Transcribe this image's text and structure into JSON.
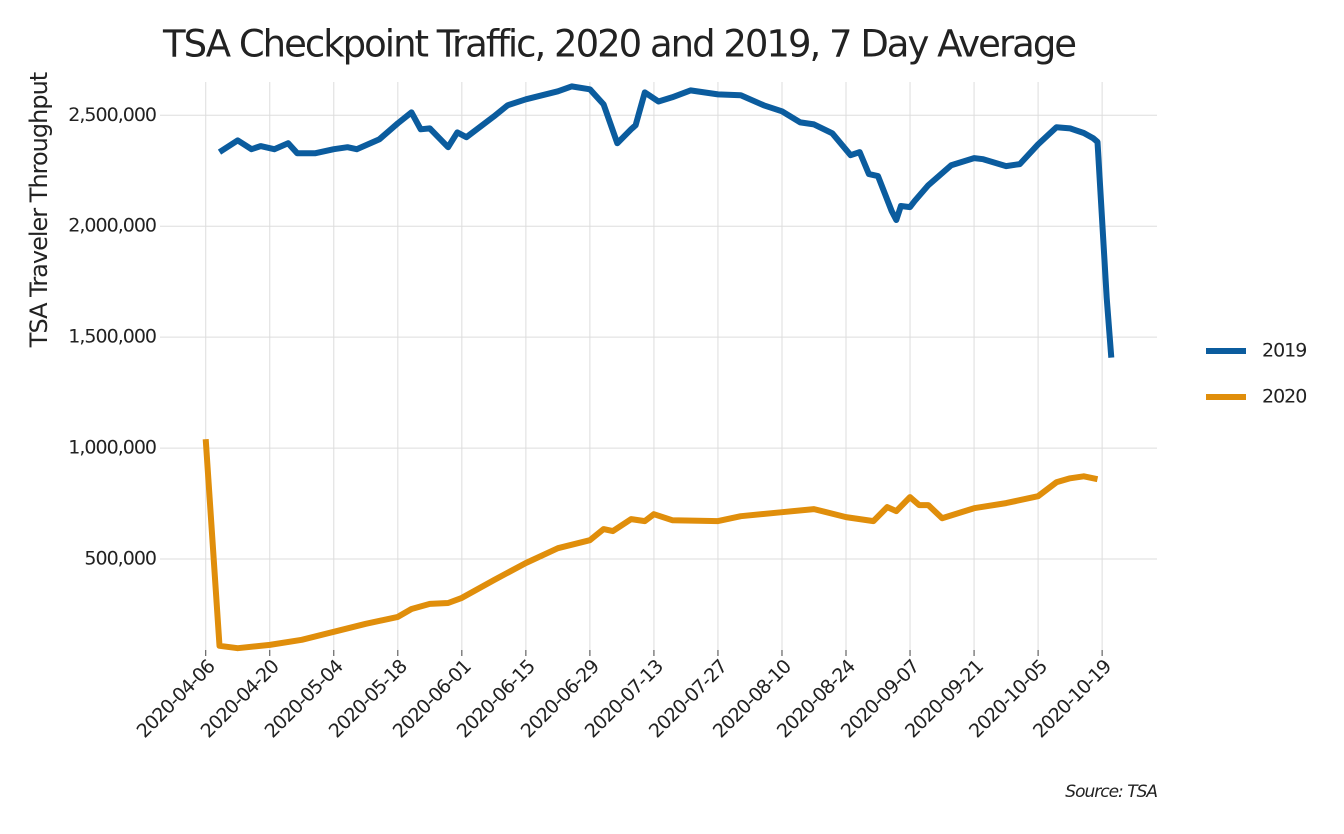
{
  "chart_data": {
    "type": "line",
    "title": "TSA Checkpoint Traffic, 2020 and 2019, 7 Day Average",
    "y_label": "TSA Traveler Throughput",
    "source": "Source: TSA",
    "xlim": [
      "2020-03-27",
      "2020-10-31"
    ],
    "ylim": [
      90000,
      2650000
    ],
    "xticks": [
      "2020-04-06",
      "2020-04-20",
      "2020-05-04",
      "2020-05-18",
      "2020-06-01",
      "2020-06-15",
      "2020-06-29",
      "2020-07-13",
      "2020-07-27",
      "2020-08-10",
      "2020-08-24",
      "2020-09-07",
      "2020-09-21",
      "2020-10-05",
      "2020-10-19"
    ],
    "yticks": [
      {
        "value": 500000,
        "label": "500,000"
      },
      {
        "value": 1000000,
        "label": "1,000,000"
      },
      {
        "value": 1500000,
        "label": "1,500,000"
      },
      {
        "value": 2000000,
        "label": "2,000,000"
      },
      {
        "value": 2500000,
        "label": "2,500,000"
      }
    ],
    "grid": true,
    "legend": "right",
    "series": [
      {
        "name": "2019",
        "color": "#0b5c9e",
        "x": [
          "2020-04-09",
          "2020-04-13",
          "2020-04-16",
          "2020-04-18",
          "2020-04-21",
          "2020-04-24",
          "2020-04-26",
          "2020-04-30",
          "2020-05-04",
          "2020-05-07",
          "2020-05-09",
          "2020-05-14",
          "2020-05-18",
          "2020-05-21",
          "2020-05-23",
          "2020-05-25",
          "2020-05-29",
          "2020-05-31",
          "2020-06-02",
          "2020-06-08",
          "2020-06-11",
          "2020-06-15",
          "2020-06-22",
          "2020-06-25",
          "2020-06-29",
          "2020-07-02",
          "2020-07-05",
          "2020-07-08",
          "2020-07-09",
          "2020-07-11",
          "2020-07-14",
          "2020-07-17",
          "2020-07-21",
          "2020-07-27",
          "2020-08-01",
          "2020-08-06",
          "2020-08-10",
          "2020-08-14",
          "2020-08-17",
          "2020-08-21",
          "2020-08-25",
          "2020-08-27",
          "2020-08-29",
          "2020-08-31",
          "2020-09-03",
          "2020-09-04",
          "2020-09-05",
          "2020-09-07",
          "2020-09-08",
          "2020-09-11",
          "2020-09-16",
          "2020-09-21",
          "2020-09-23",
          "2020-09-28",
          "2020-10-01",
          "2020-10-05",
          "2020-10-09",
          "2020-10-12",
          "2020-10-15",
          "2020-10-17",
          "2020-10-18",
          "2020-10-20",
          "2020-10-21"
        ],
        "values": [
          2334000,
          2387000,
          2347000,
          2361000,
          2347000,
          2374000,
          2329000,
          2329000,
          2347000,
          2356000,
          2347000,
          2392000,
          2464000,
          2513000,
          2437000,
          2441000,
          2356000,
          2423000,
          2401000,
          2495000,
          2545000,
          2572000,
          2608000,
          2630000,
          2617000,
          2549000,
          2374000,
          2437000,
          2455000,
          2603000,
          2562000,
          2581000,
          2612000,
          2594000,
          2590000,
          2545000,
          2518000,
          2468000,
          2459000,
          2419000,
          2320000,
          2334000,
          2235000,
          2226000,
          2068000,
          2028000,
          2091000,
          2086000,
          2113000,
          2185000,
          2275000,
          2307000,
          2302000,
          2271000,
          2280000,
          2369000,
          2446000,
          2441000,
          2420000,
          2397000,
          2380000,
          1677000,
          1408000
        ]
      },
      {
        "name": "2020",
        "color": "#e08e0b",
        "x": [
          "2020-04-06",
          "2020-04-09",
          "2020-04-13",
          "2020-04-20",
          "2020-04-27",
          "2020-05-04",
          "2020-05-11",
          "2020-05-18",
          "2020-05-21",
          "2020-05-25",
          "2020-05-29",
          "2020-06-01",
          "2020-06-08",
          "2020-06-15",
          "2020-06-22",
          "2020-06-29",
          "2020-07-02",
          "2020-07-04",
          "2020-07-08",
          "2020-07-11",
          "2020-07-13",
          "2020-07-17",
          "2020-07-27",
          "2020-08-01",
          "2020-08-10",
          "2020-08-17",
          "2020-08-24",
          "2020-08-30",
          "2020-09-02",
          "2020-09-04",
          "2020-09-07",
          "2020-09-09",
          "2020-09-11",
          "2020-09-14",
          "2020-09-21",
          "2020-09-28",
          "2020-10-05",
          "2020-10-09",
          "2020-10-12",
          "2020-10-15",
          "2020-10-18"
        ],
        "values": [
          1040000,
          109000,
          98000,
          113000,
          136000,
          172000,
          208000,
          239000,
          275000,
          298000,
          302000,
          325000,
          405000,
          482000,
          549000,
          585000,
          635000,
          626000,
          680000,
          671000,
          702000,
          675000,
          671000,
          693000,
          711000,
          725000,
          689000,
          671000,
          734000,
          716000,
          779000,
          743000,
          743000,
          684000,
          729000,
          752000,
          783000,
          846000,
          864000,
          873000,
          860000
        ]
      }
    ]
  }
}
